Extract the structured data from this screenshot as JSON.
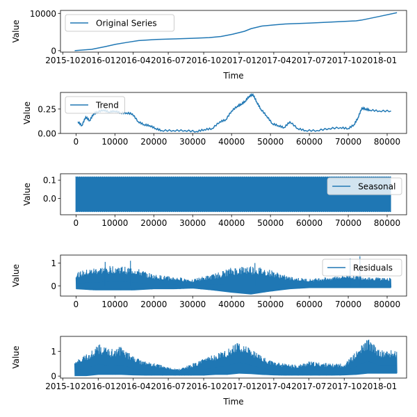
{
  "chart_data": [
    {
      "type": "line",
      "xlabel": "Time",
      "ylabel": "Value",
      "x_is_date": true,
      "xticks": [
        "2015-10",
        "2016-01",
        "2016-04",
        "2016-07",
        "2016-10",
        "2017-01",
        "2017-04",
        "2017-07",
        "2017-10",
        "2018-01"
      ],
      "ylim": [
        -400,
        10800
      ],
      "yticks": [
        0,
        10000
      ],
      "legend": "upper left",
      "series": [
        {
          "name": "Original Series",
          "color": "#1f77b4",
          "x": [
            "2015-11-01",
            "2015-12-15",
            "2016-01-20",
            "2016-02-15",
            "2016-03-15",
            "2016-04-15",
            "2016-06-01",
            "2016-07-15",
            "2016-09-01",
            "2016-10-15",
            "2016-11-15",
            "2016-12-15",
            "2017-01-15",
            "2017-02-01",
            "2017-03-01",
            "2017-04-01",
            "2017-05-01",
            "2017-07-01",
            "2017-09-01",
            "2017-11-01",
            "2017-11-15",
            "2018-01-01",
            "2018-02-15"
          ],
          "y": [
            0,
            350,
            1100,
            1700,
            2200,
            2700,
            3000,
            3150,
            3300,
            3500,
            3800,
            4400,
            5200,
            5900,
            6600,
            6900,
            7150,
            7400,
            7700,
            8000,
            8200,
            9200,
            10200
          ]
        }
      ]
    },
    {
      "type": "line",
      "xlabel": "",
      "ylabel": "Value",
      "xlim": [
        -4000,
        85000
      ],
      "ylim": [
        0.0,
        0.42
      ],
      "xticks": [
        0,
        10000,
        20000,
        30000,
        40000,
        50000,
        60000,
        70000,
        80000
      ],
      "yticks": [
        0.0,
        0.25
      ],
      "ytick_labels": [
        "0.00",
        "0.25"
      ],
      "legend": "upper left",
      "series": [
        {
          "name": "Trend",
          "color": "#1f77b4",
          "x": [
            500,
            1500,
            2500,
            3500,
            4500,
            5500,
            7000,
            8500,
            10000,
            11500,
            13000,
            14500,
            16000,
            17500,
            19000,
            20500,
            22000,
            25000,
            28000,
            31000,
            33000,
            35000,
            37000,
            38500,
            40000,
            41500,
            42500,
            43500,
            44500,
            45500,
            46500,
            47500,
            49000,
            50500,
            52000,
            53500,
            55000,
            57000,
            59000,
            62000,
            65000,
            68000,
            70000,
            71500,
            72500,
            73500,
            74500,
            75500,
            78000,
            81000
          ],
          "y": [
            0.12,
            0.08,
            0.17,
            0.13,
            0.2,
            0.22,
            0.24,
            0.22,
            0.23,
            0.21,
            0.21,
            0.2,
            0.12,
            0.09,
            0.08,
            0.05,
            0.03,
            0.03,
            0.03,
            0.02,
            0.04,
            0.05,
            0.12,
            0.14,
            0.23,
            0.28,
            0.3,
            0.33,
            0.38,
            0.4,
            0.32,
            0.25,
            0.18,
            0.1,
            0.08,
            0.06,
            0.12,
            0.05,
            0.03,
            0.03,
            0.05,
            0.06,
            0.05,
            0.09,
            0.16,
            0.26,
            0.25,
            0.24,
            0.23,
            0.23
          ]
        }
      ]
    },
    {
      "type": "line",
      "xlabel": "",
      "ylabel": "Value",
      "xlim": [
        -4000,
        85000
      ],
      "ylim": [
        -0.09,
        0.135
      ],
      "xticks": [
        0,
        10000,
        20000,
        30000,
        40000,
        50000,
        60000,
        70000,
        80000
      ],
      "yticks": [
        0.0,
        0.1
      ],
      "ytick_labels": [
        "0.0",
        "0.1"
      ],
      "legend": "upper right",
      "series": [
        {
          "name": "Seasonal",
          "color": "#1f77b4",
          "x_range": [
            0,
            81000
          ],
          "y_range": [
            -0.075,
            0.12
          ]
        }
      ]
    },
    {
      "type": "line",
      "xlabel": "",
      "ylabel": "Value",
      "xlim": [
        -4000,
        85000
      ],
      "ylim": [
        -0.45,
        1.35
      ],
      "xticks": [
        0,
        10000,
        20000,
        30000,
        40000,
        50000,
        60000,
        70000,
        80000
      ],
      "yticks": [
        0,
        1
      ],
      "legend": "upper right",
      "series": [
        {
          "name": "Residuals",
          "color": "#1f77b4",
          "x": [
            0,
            5000,
            10000,
            15000,
            20000,
            25000,
            30000,
            35000,
            40000,
            45000,
            50000,
            55000,
            60000,
            65000,
            70000,
            75000,
            81000
          ],
          "upper": [
            0.6,
            0.8,
            0.9,
            0.8,
            0.5,
            0.4,
            0.3,
            0.5,
            0.8,
            0.9,
            0.7,
            0.4,
            0.3,
            0.4,
            0.5,
            0.4,
            0.35
          ],
          "lower": [
            -0.15,
            -0.2,
            -0.2,
            -0.2,
            -0.15,
            -0.15,
            -0.12,
            -0.2,
            -0.3,
            -0.38,
            -0.25,
            -0.15,
            -0.1,
            -0.1,
            -0.1,
            -0.1,
            -0.1
          ],
          "spikes": [
            [
              70500,
              1.2
            ],
            [
              73000,
              1.3
            ],
            [
              46000,
              1.0
            ],
            [
              7500,
              1.05
            ],
            [
              14000,
              1.1
            ]
          ]
        }
      ]
    },
    {
      "type": "line",
      "xlabel": "Time",
      "ylabel": "Value",
      "x_is_date": true,
      "xticks": [
        "2015-10",
        "2016-01",
        "2016-04",
        "2016-07",
        "2016-10",
        "2017-01",
        "2017-04",
        "2017-07",
        "2017-10",
        "2018-01"
      ],
      "ylim": [
        -0.08,
        1.6
      ],
      "yticks": [
        0,
        1
      ],
      "legend": "none",
      "series": [
        {
          "color": "#1f77b4",
          "x": [
            "2015-11-01",
            "2015-12-01",
            "2016-01-01",
            "2016-02-01",
            "2016-03-01",
            "2016-04-01",
            "2016-05-01",
            "2016-06-01",
            "2016-07-01",
            "2016-08-01",
            "2016-09-01",
            "2016-10-01",
            "2016-11-01",
            "2016-12-01",
            "2017-01-01",
            "2017-02-01",
            "2017-03-01",
            "2017-04-01",
            "2017-05-01",
            "2017-06-01",
            "2017-07-01",
            "2017-08-01",
            "2017-09-01",
            "2017-10-01",
            "2017-11-01",
            "2017-12-01",
            "2018-01-01",
            "2018-02-15"
          ],
          "upper": [
            0.6,
            0.9,
            1.3,
            1.1,
            1.2,
            0.8,
            0.6,
            0.5,
            0.35,
            0.3,
            0.5,
            0.7,
            0.9,
            1.1,
            1.4,
            1.1,
            0.8,
            0.6,
            0.5,
            0.45,
            0.6,
            0.55,
            0.5,
            0.5,
            1.0,
            1.55,
            1.05,
            1.05
          ],
          "lower": [
            0,
            0,
            0.05,
            0.05,
            0.05,
            0.03,
            0.02,
            0.02,
            0.02,
            0.02,
            0.02,
            0.02,
            0.05,
            0.05,
            0.1,
            0.08,
            0.05,
            0.03,
            0.02,
            0.02,
            0.02,
            0.02,
            0.02,
            0.03,
            0.05,
            0.1,
            0.1,
            0.1
          ]
        }
      ]
    }
  ]
}
